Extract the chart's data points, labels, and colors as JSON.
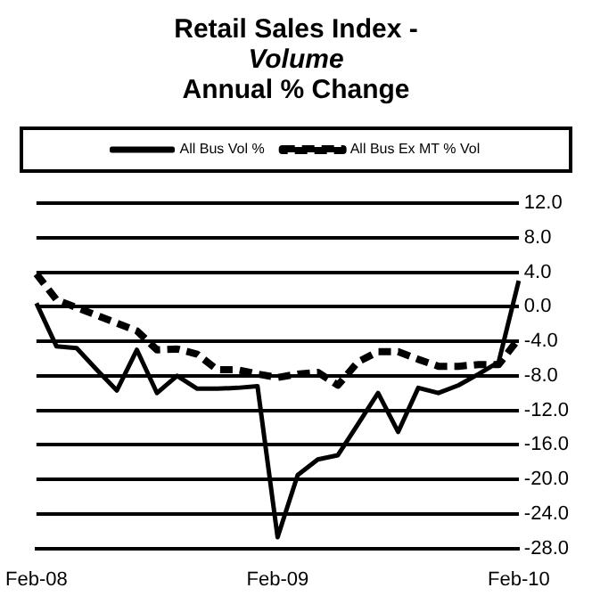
{
  "chart_data": {
    "type": "line",
    "title": "Retail Sales Index -\nVolume\nAnnual % Change",
    "categories": [
      "Feb-08",
      null,
      null,
      null,
      null,
      null,
      null,
      null,
      null,
      null,
      null,
      null,
      "Feb-09",
      null,
      null,
      null,
      null,
      null,
      null,
      null,
      null,
      null,
      null,
      null,
      "Feb-10"
    ],
    "series": [
      {
        "name": "All Bus Vol %",
        "color": "#000000",
        "line_style": "solid",
        "values": [
          0.4,
          -4.6,
          -4.8,
          -7.3,
          -9.7,
          -5.0,
          -10.0,
          -8.0,
          -9.5,
          -9.5,
          -9.4,
          -9.2,
          -26.7,
          -19.5,
          -17.7,
          -17.2,
          -13.6,
          -10.0,
          -14.5,
          -9.4,
          -10.0,
          -9.1,
          -7.8,
          -6.4,
          3.0
        ]
      },
      {
        "name": "All Bus Ex MT % Vol",
        "color": "#000000",
        "line_style": "dashed",
        "values": [
          3.8,
          0.8,
          -0.1,
          -1.0,
          -1.9,
          -2.8,
          -5.0,
          -4.9,
          -5.5,
          -7.3,
          -7.3,
          -7.8,
          -8.2,
          -7.8,
          -7.6,
          -9.1,
          -6.4,
          -5.2,
          -5.2,
          -6.1,
          -6.9,
          -6.9,
          -6.7,
          -6.7,
          -3.7
        ]
      }
    ],
    "ylim": [
      -28,
      12
    ],
    "yticks": [
      {
        "value": 12,
        "label": "12.0"
      },
      {
        "value": 8,
        "label": "8.0"
      },
      {
        "value": 4,
        "label": "4.0"
      },
      {
        "value": 0,
        "label": "0.0"
      },
      {
        "value": -4,
        "label": "-4.0"
      },
      {
        "value": -8,
        "label": "-8.0"
      },
      {
        "value": -12,
        "label": "-12.0"
      },
      {
        "value": -16,
        "label": "-16.0"
      },
      {
        "value": -20,
        "label": "-20.0"
      },
      {
        "value": -24,
        "label": "-24.0"
      },
      {
        "value": -28,
        "label": "-28.0"
      }
    ],
    "grid": "y",
    "legend": "top",
    "marker": "none"
  }
}
